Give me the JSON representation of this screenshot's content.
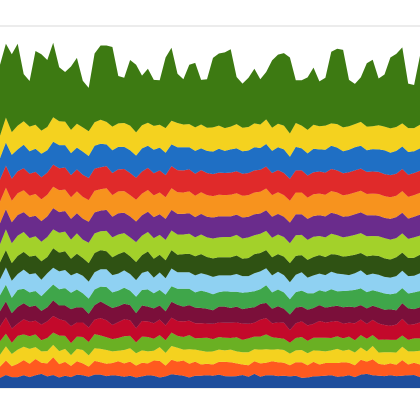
{
  "chart_data": {
    "type": "area",
    "stacked": true,
    "title": "",
    "xlabel": "",
    "ylabel": "",
    "grid": true,
    "legend": "none",
    "ylim": [
      0,
      100
    ],
    "x": [
      1,
      2,
      3,
      4,
      5,
      6,
      7,
      8,
      9,
      10,
      11,
      12,
      13,
      14,
      15,
      16,
      17,
      18,
      19,
      20,
      21,
      22,
      23,
      24,
      25,
      26,
      27,
      28,
      29,
      30,
      31,
      32,
      33,
      34,
      35,
      36,
      37,
      38,
      39,
      40,
      41,
      42,
      43,
      44,
      45,
      46,
      47,
      48,
      49,
      50,
      51,
      52,
      53,
      54,
      55,
      56,
      57,
      58,
      59,
      60,
      61,
      62,
      63,
      64,
      65,
      66,
      67,
      68,
      69,
      70,
      71,
      72
    ],
    "series": [
      {
        "color": "#1f4e9c",
        "values": [
          2.8,
          3.6,
          3.0,
          3.0,
          3.5,
          3.0,
          3.5,
          3.9,
          3.2,
          3.6,
          2.9,
          3.4,
          3.0,
          3.7,
          3.5,
          3.1,
          3.7,
          3.7,
          3.3,
          3.5,
          3.4,
          3.1,
          3.4,
          2.9,
          3.2,
          3.5,
          3.4,
          2.9,
          3.2,
          3.8,
          3.6,
          3.4,
          2.9,
          3.4,
          3.4,
          3.5,
          3.4,
          3.7,
          3.3,
          3.2,
          3.3,
          3.6,
          3.1,
          3.9,
          3.1,
          3.5,
          3.5,
          3.3,
          3.4,
          3.2,
          3.4,
          2.8,
          2.9,
          3.2,
          3.3,
          3.4,
          3.5,
          3.1,
          3.2,
          3.5,
          3.0,
          3.7,
          3.9,
          3.5,
          3.4,
          3.3,
          3.5,
          3.3,
          3.4,
          3.5,
          3.6,
          3.0
        ]
      },
      {
        "color": "#ff5a1f",
        "values": [
          3.1,
          4.0,
          3.0,
          3.7,
          4.2,
          3.7,
          4.5,
          3.1,
          3.6,
          4.9,
          3.7,
          3.8,
          3.1,
          3.7,
          3.3,
          2.8,
          3.8,
          3.4,
          3.4,
          3.4,
          4.0,
          3.7,
          3.9,
          3.3,
          3.8,
          3.3,
          4.2,
          4.6,
          3.0,
          4.0,
          3.7,
          4.2,
          3.8,
          3.9,
          3.1,
          3.2,
          3.1,
          3.5,
          3.9,
          3.9,
          3.5,
          2.9,
          3.2,
          3.5,
          3.7,
          3.5,
          3.9,
          3.8,
          3.6,
          3.1,
          3.7,
          4.3,
          3.4,
          4.0,
          3.2,
          3.5,
          3.4,
          3.8,
          3.9,
          3.5,
          3.3,
          4.1,
          3.4,
          4.4,
          3.3,
          3.1,
          3.3,
          3.1,
          4.3,
          3.0,
          3.4,
          3.5
        ]
      },
      {
        "color": "#f4d21f",
        "values": [
          3.3,
          3.9,
          3.4,
          3.9,
          3.7,
          4.1,
          3.3,
          3.1,
          3.4,
          3.4,
          3.6,
          3.6,
          3.0,
          3.4,
          3.7,
          3.1,
          3.5,
          3.7,
          3.8,
          3.2,
          2.9,
          3.7,
          3.7,
          3.4,
          3.4,
          3.3,
          2.7,
          3.8,
          3.5,
          3.8,
          3.8,
          3.0,
          4.0,
          3.3,
          3.8,
          3.3,
          3.6,
          3.4,
          3.2,
          3.5,
          3.3,
          3.4,
          3.6,
          3.3,
          3.8,
          3.7,
          3.2,
          3.6,
          3.5,
          3.2,
          3.3,
          3.4,
          3.3,
          3.2,
          3.8,
          3.2,
          3.5,
          3.9,
          3.2,
          3.6,
          3.5,
          3.4,
          2.8,
          3.7,
          3.1,
          3.5,
          3.1,
          3.4,
          3.7,
          3.6,
          3.1,
          3.8
        ]
      },
      {
        "color": "#6ab023",
        "values": [
          3.7,
          3.5,
          3.1,
          3.8,
          3.4,
          3.5,
          3.5,
          3.1,
          3.6,
          3.4,
          4.3,
          3.6,
          3.3,
          3.4,
          3.6,
          3.7,
          3.9,
          3.7,
          3.5,
          3.4,
          3.5,
          3.8,
          3.4,
          3.0,
          3.8,
          4.0,
          3.3,
          3.3,
          3.5,
          3.7,
          3.3,
          3.5,
          3.9,
          3.1,
          3.5,
          3.9,
          3.4,
          3.5,
          3.5,
          3.2,
          3.9,
          3.4,
          3.8,
          3.5,
          3.6,
          4.1,
          3.4,
          3.1,
          3.1,
          3.0,
          3.4,
          3.6,
          3.4,
          3.5,
          3.6,
          3.8,
          3.4,
          3.5,
          3.4,
          3.6,
          3.4,
          3.4,
          3.5,
          3.0,
          3.5,
          3.5,
          3.4,
          3.5,
          3.1,
          3.2,
          3.6,
          3.4
        ]
      },
      {
        "color": "#c3092b",
        "values": [
          4.1,
          4.5,
          3.9,
          3.4,
          4.2,
          4.0,
          3.8,
          4.3,
          4.6,
          4.6,
          4.5,
          4.2,
          4.7,
          3.9,
          4.0,
          4.0,
          4.0,
          4.8,
          4.7,
          3.9,
          4.4,
          4.7,
          4.3,
          3.9,
          4.3,
          4.3,
          4.3,
          4.3,
          4.1,
          4.1,
          4.1,
          4.3,
          4.0,
          4.2,
          4.1,
          3.9,
          4.2,
          4.0,
          4.1,
          4.2,
          4.1,
          4.5,
          4.0,
          3.8,
          4.7,
          4.5,
          3.9,
          4.3,
          4.4,
          3.5,
          4.1,
          4.3,
          4.3,
          3.8,
          4.6,
          4.2,
          4.5,
          4.2,
          4.1,
          3.8,
          4.7,
          4.3,
          4.1,
          4.2,
          4.5,
          4.0,
          3.9,
          4.2,
          4.6,
          4.2,
          3.9,
          4.4
        ]
      },
      {
        "color": "#7b0f3a",
        "values": [
          4.2,
          4.4,
          4.3,
          4.6,
          4.4,
          4.1,
          4.2,
          3.8,
          3.9,
          4.3,
          3.8,
          4.2,
          4.7,
          4.2,
          4.1,
          3.8,
          4.0,
          4.6,
          4.3,
          4.7,
          4.4,
          4.3,
          4.2,
          4.2,
          4.3,
          4.1,
          4.1,
          3.9,
          3.9,
          4.4,
          4.5,
          4.1,
          4.3,
          4.3,
          4.2,
          4.1,
          3.8,
          4.4,
          4.5,
          4.1,
          4.4,
          4.0,
          4.4,
          4.3,
          4.3,
          4.2,
          4.0,
          4.5,
          3.9,
          4.3,
          4.3,
          4.1,
          4.3,
          4.4,
          4.4,
          4.1,
          4.2,
          4.2,
          4.5,
          4.5,
          4.4,
          4.0,
          4.3,
          3.9,
          4.4,
          4.2,
          4.5,
          4.0,
          4.3,
          4.5,
          4.2,
          4.2
        ]
      },
      {
        "color": "#3fa64a",
        "values": [
          4.4,
          4.6,
          4.2,
          4.7,
          4.0,
          4.0,
          4.0,
          4.1,
          4.7,
          4.4,
          4.5,
          4.8,
          4.5,
          4.9,
          4.0,
          4.2,
          4.3,
          4.1,
          4.9,
          4.3,
          4.3,
          4.4,
          4.0,
          4.5,
          4.3,
          4.7,
          4.2,
          4.3,
          4.6,
          4.3,
          4.4,
          4.9,
          4.5,
          4.2,
          4.8,
          4.6,
          4.4,
          4.0,
          4.2,
          4.5,
          4.1,
          4.5,
          4.4,
          4.4,
          4.1,
          4.9,
          4.5,
          4.6,
          4.5,
          4.2,
          4.3,
          4.4,
          4.6,
          4.1,
          4.1,
          4.4,
          4.8,
          4.0,
          4.5,
          4.4,
          4.8,
          4.6,
          4.5,
          4.3,
          4.4,
          4.5,
          4.2,
          4.7,
          4.2,
          4.1,
          4.6,
          4.5
        ]
      },
      {
        "color": "#8fd1f2",
        "values": [
          4.4,
          4.8,
          4.7,
          4.4,
          5.3,
          5.0,
          4.9,
          4.5,
          4.7,
          4.6,
          4.9,
          5.0,
          4.8,
          4.6,
          4.8,
          4.7,
          4.8,
          4.8,
          4.9,
          4.8,
          4.7,
          4.8,
          4.6,
          4.6,
          4.7,
          5.1,
          4.3,
          4.8,
          4.5,
          4.9,
          4.6,
          4.6,
          4.6,
          4.7,
          4.8,
          4.8,
          4.8,
          4.6,
          4.4,
          4.5,
          4.9,
          4.6,
          4.4,
          5.0,
          4.9,
          4.7,
          4.7,
          4.9,
          4.8,
          4.7,
          4.8,
          5.1,
          4.3,
          4.9,
          4.6,
          4.6,
          4.8,
          4.9,
          4.6,
          4.3,
          4.6,
          5.0,
          4.7,
          4.6,
          4.7,
          4.6,
          4.6,
          4.7,
          4.8,
          4.8,
          4.6,
          4.9
        ]
      },
      {
        "color": "#2f5213",
        "values": [
          4.7,
          4.8,
          4.9,
          5.0,
          4.9,
          4.9,
          4.9,
          5.1,
          4.5,
          5.4,
          5.2,
          5.2,
          4.6,
          5.3,
          4.9,
          5.1,
          5.3,
          5.3,
          5.0,
          4.9,
          5.4,
          5.1,
          4.9,
          5.0,
          4.9,
          5.4,
          5.2,
          4.9,
          5.0,
          5.1,
          4.8,
          5.0,
          5.1,
          5.3,
          5.3,
          4.9,
          5.1,
          5.0,
          5.0,
          5.0,
          5.1,
          4.8,
          5.0,
          5.3,
          5.1,
          5.0,
          5.0,
          4.9,
          5.1,
          5.3,
          5.2,
          4.7,
          4.9,
          5.1,
          5.1,
          5.0,
          4.9,
          5.2,
          4.9,
          5.3,
          5.1,
          4.8,
          5.2,
          5.0,
          5.2,
          5.1,
          5.0,
          5.2,
          5.0,
          5.0,
          5.0,
          5.1
        ]
      },
      {
        "color": "#a3d12a",
        "values": [
          5.0,
          5.7,
          5.5,
          5.6,
          5.5,
          5.1,
          5.3,
          5.4,
          5.5,
          5.2,
          5.5,
          5.4,
          5.3,
          5.6,
          5.1,
          5.6,
          5.4,
          5.2,
          5.6,
          5.5,
          5.4,
          5.2,
          5.2,
          5.5,
          5.4,
          5.4,
          5.7,
          5.5,
          5.6,
          5.4,
          5.6,
          5.4,
          5.5,
          5.2,
          5.4,
          5.4,
          5.5,
          5.5,
          5.6,
          5.6,
          5.7,
          5.6,
          5.7,
          5.2,
          5.3,
          5.3,
          5.4,
          5.4,
          5.4,
          5.5,
          5.7,
          5.6,
          5.5,
          5.6,
          5.3,
          5.4,
          5.6,
          5.4,
          5.3,
          5.4,
          5.5,
          5.5,
          5.5,
          5.4,
          5.4,
          5.6,
          5.5,
          5.3,
          5.3,
          5.3,
          5.6,
          5.3
        ]
      },
      {
        "color": "#6a2c8c",
        "values": [
          5.8,
          5.6,
          5.8,
          5.7,
          5.5,
          5.8,
          5.7,
          5.7,
          5.7,
          5.9,
          5.7,
          5.7,
          5.7,
          5.6,
          5.8,
          5.8,
          5.8,
          5.7,
          5.8,
          5.7,
          5.9,
          5.6,
          5.8,
          5.7,
          5.6,
          5.6,
          5.8,
          5.7,
          5.8,
          5.7,
          5.7,
          5.7,
          5.7,
          5.6,
          5.7,
          5.7,
          5.8,
          5.8,
          5.7,
          5.7,
          5.6,
          5.8,
          5.7,
          5.8,
          5.6,
          5.7,
          5.8,
          5.7,
          5.6,
          5.7,
          5.8,
          5.7,
          5.8,
          5.7,
          5.7,
          5.8,
          5.8,
          5.8,
          5.7,
          5.6,
          5.7,
          5.7,
          5.8,
          5.7,
          5.7,
          5.6,
          5.7,
          5.8,
          5.7,
          5.6,
          5.7,
          5.8
        ]
      },
      {
        "color": "#f7931e",
        "values": [
          6.0,
          5.9,
          5.9,
          6.0,
          6.0,
          5.9,
          6.0,
          6.0,
          6.0,
          5.9,
          6.0,
          5.9,
          6.0,
          6.0,
          6.0,
          6.0,
          6.0,
          5.9,
          6.0,
          6.0,
          6.0,
          6.0,
          5.9,
          6.0,
          6.0,
          6.0,
          6.0,
          6.0,
          6.0,
          6.0,
          6.0,
          5.9,
          6.0,
          5.9,
          6.0,
          6.0,
          5.9,
          6.0,
          5.9,
          6.0,
          5.9,
          6.0,
          6.0,
          6.0,
          6.0,
          6.0,
          6.0,
          6.0,
          6.0,
          6.0,
          6.0,
          6.0,
          5.9,
          6.0,
          6.0,
          6.0,
          6.0,
          6.0,
          5.9,
          6.0,
          6.0,
          6.0,
          5.9,
          6.0,
          6.0,
          6.0,
          6.0,
          5.9,
          6.0,
          6.0,
          6.0,
          6.0
        ]
      },
      {
        "color": "#e02a2a",
        "values": [
          6.1,
          6.1,
          6.1,
          6.1,
          6.1,
          6.1,
          6.1,
          6.1,
          6.1,
          6.1,
          6.1,
          6.1,
          6.1,
          6.1,
          6.1,
          6.1,
          6.1,
          6.1,
          6.1,
          6.1,
          6.1,
          6.1,
          6.1,
          6.1,
          6.1,
          6.1,
          6.1,
          6.1,
          6.1,
          6.1,
          6.1,
          6.1,
          6.1,
          6.1,
          6.1,
          6.1,
          6.1,
          6.1,
          6.1,
          6.1,
          6.1,
          6.1,
          6.1,
          6.1,
          6.1,
          6.1,
          6.1,
          6.1,
          6.1,
          6.1,
          6.1,
          6.1,
          6.1,
          6.1,
          6.1,
          6.1,
          6.1,
          6.1,
          6.1,
          6.1,
          6.1,
          6.1,
          6.1,
          6.1,
          6.1,
          6.1,
          6.1,
          6.1,
          6.1,
          6.1,
          6.1,
          6.1
        ]
      },
      {
        "color": "#1f6fc4",
        "values": [
          5.9,
          6.4,
          6.6,
          6.0,
          6.5,
          6.2,
          6.4,
          6.5,
          6.2,
          6.3,
          6.4,
          6.2,
          6.1,
          6.0,
          6.4,
          6.1,
          6.3,
          6.5,
          6.0,
          6.3,
          6.2,
          6.1,
          6.3,
          6.1,
          6.4,
          6.1,
          6.5,
          6.3,
          6.2,
          6.0,
          6.3,
          6.4,
          6.1,
          6.3,
          6.0,
          6.1,
          6.2,
          6.6,
          6.1,
          6.4,
          6.3,
          6.2,
          6.2,
          6.4,
          6.0,
          6.2,
          6.1,
          6.3,
          6.5,
          6.1,
          6.5,
          6.1,
          6.1,
          6.5,
          6.1,
          6.3,
          6.4,
          6.3,
          6.1,
          6.2,
          6.4,
          6.3,
          6.0,
          6.2,
          6.2,
          6.6,
          6.2,
          6.3,
          6.2,
          6.3,
          6.0,
          6.2
        ]
      },
      {
        "color": "#f4d21f",
        "values": [
          6.2,
          6.9,
          6.3,
          6.6,
          6.5,
          6.8,
          6.6,
          6.4,
          6.4,
          6.8,
          6.6,
          6.5,
          6.4,
          6.6,
          6.7,
          6.8,
          6.5,
          6.6,
          6.2,
          6.5,
          6.5,
          6.6,
          6.8,
          6.4,
          6.4,
          6.4,
          6.6,
          6.3,
          6.8,
          6.5,
          6.7,
          6.3,
          6.4,
          6.5,
          6.6,
          6.4,
          6.7,
          6.4,
          6.3,
          6.3,
          6.7,
          6.5,
          6.5,
          6.6,
          6.5,
          6.8,
          6.4,
          6.5,
          6.6,
          6.4,
          6.6,
          6.3,
          6.5,
          6.6,
          6.4,
          6.7,
          6.2,
          6.5,
          6.6,
          6.5,
          6.4,
          6.6,
          6.5,
          6.3,
          6.7,
          6.5,
          6.7,
          6.6,
          6.4,
          6.6,
          6.4,
          6.5
        ]
      },
      {
        "color": "#3d7a12",
        "values": [
          19.6,
          20.4,
          21.5,
          22.6,
          13.0,
          12.6,
          20.4,
          21.1,
          18.5,
          20.6,
          14.9,
          13.7,
          17.5,
          18.2,
          12.9,
          12.0,
          19.0,
          20.5,
          21.1,
          22.0,
          13.1,
          12.5,
          18.1,
          18.7,
          13.7,
          14.9,
          12.7,
          12.3,
          19.5,
          20.2,
          13.6,
          12.5,
          16.4,
          17.8,
          12.3,
          13.4,
          19.2,
          19.9,
          20.9,
          21.4,
          13.0,
          12.2,
          13.6,
          15.1,
          12.5,
          13.1,
          18.6,
          19.1,
          20.0,
          21.0,
          11.8,
          12.5,
          14.5,
          15.8,
          12.4,
          13.2,
          19.8,
          20.8,
          21.4,
          12.8,
          11.1,
          12.3,
          17.5,
          18.4,
          12.9,
          14.4,
          19.6,
          20.2,
          21.0,
          12.3,
          11.9,
          19.1
        ]
      }
    ]
  }
}
